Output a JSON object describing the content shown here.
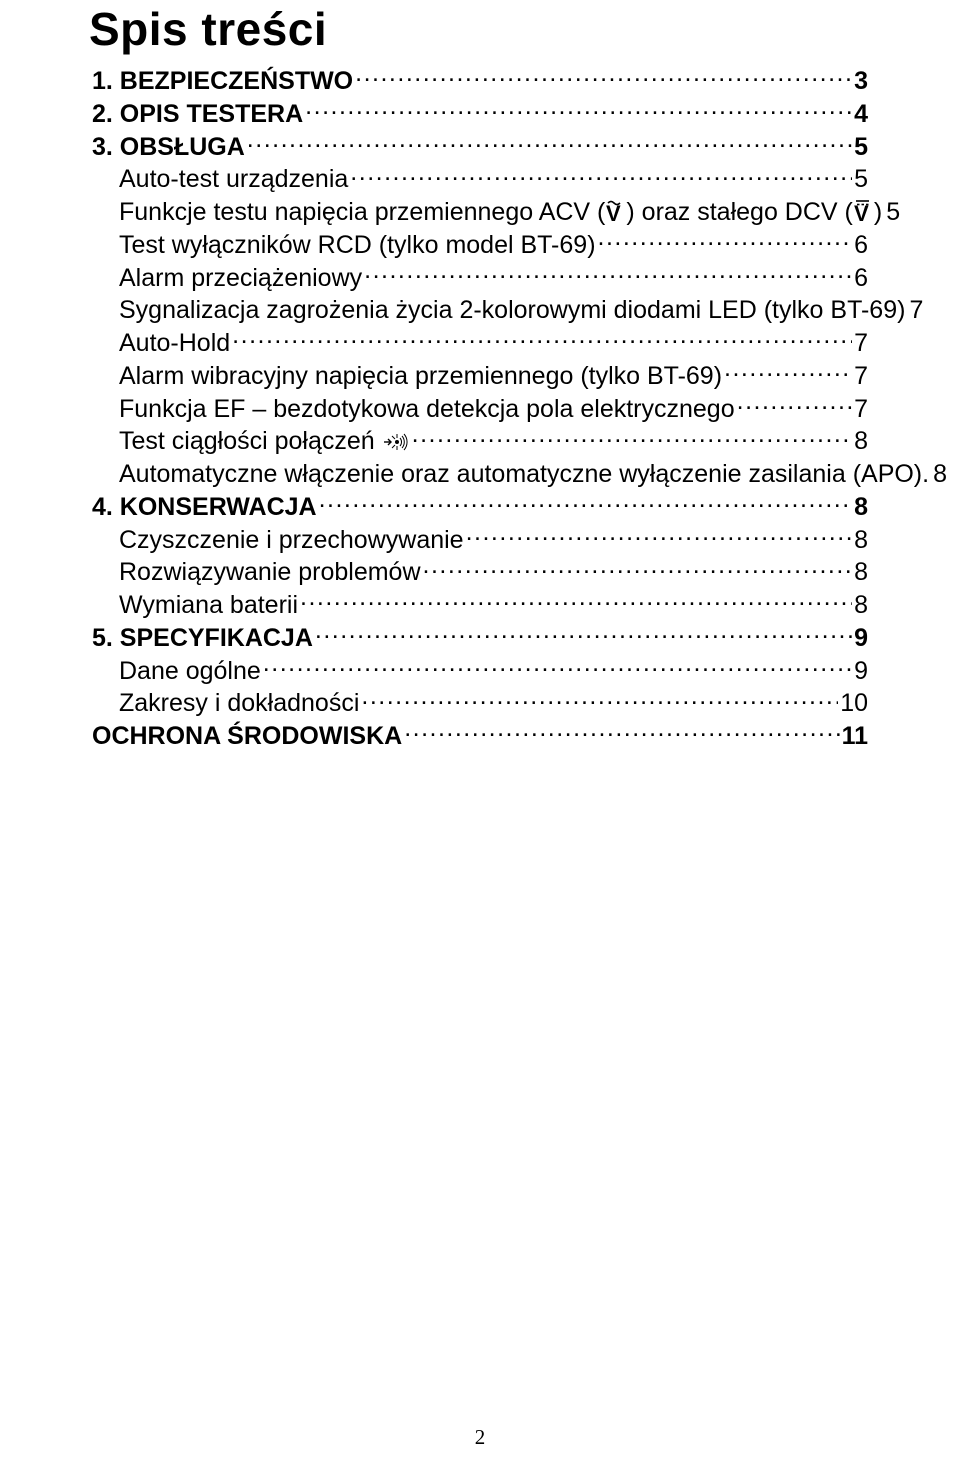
{
  "title": "Spis treści",
  "page_number": "2",
  "icons": {
    "v_tilde": "v-tilde-icon",
    "v_dblbar": "v-doublebar-icon",
    "sound": "sound-icon"
  },
  "toc": [
    {
      "label": "1. BEZPIECZEŃSTWO",
      "page": "3",
      "bold": true,
      "indent": false
    },
    {
      "label": "2. OPIS TESTERA",
      "page": "4",
      "bold": true,
      "indent": false
    },
    {
      "label": "3. OBSŁUGA",
      "page": "5",
      "bold": true,
      "indent": false
    },
    {
      "label_parts": [
        "Auto-test urządzenia"
      ],
      "page": "5",
      "bold": false,
      "indent": true
    },
    {
      "label_parts": [
        "Funkcje testu napięcia przemiennego ACV (",
        {
          "icon": "v_tilde"
        },
        ") oraz stałego DCV (",
        {
          "icon": "v_dblbar"
        },
        ")"
      ],
      "page": "5",
      "bold": false,
      "indent": true
    },
    {
      "label_parts": [
        "Test wyłączników RCD (tylko model BT-69)"
      ],
      "page": "6",
      "bold": false,
      "indent": true
    },
    {
      "label_parts": [
        "Alarm przeciążeniowy"
      ],
      "page": "6",
      "bold": false,
      "indent": true
    },
    {
      "label_parts": [
        "Sygnalizacja zagrożenia życia 2-kolorowymi diodami LED (tylko BT-69)"
      ],
      "page": "7",
      "bold": false,
      "indent": true
    },
    {
      "label_parts": [
        "Auto-Hold"
      ],
      "page": "7",
      "bold": false,
      "indent": true
    },
    {
      "label_parts": [
        "Alarm wibracyjny napięcia przemiennego (tylko BT-69)"
      ],
      "page": "7",
      "bold": false,
      "indent": true
    },
    {
      "label_parts": [
        "Funkcja EF – bezdotykowa detekcja pola elektrycznego"
      ],
      "page": "7",
      "bold": false,
      "indent": true
    },
    {
      "label_parts": [
        "Test ciągłości połączeń ",
        {
          "icon": "sound"
        }
      ],
      "page": "8",
      "bold": false,
      "indent": true
    },
    {
      "label_parts": [
        "Automatyczne włączenie oraz automatyczne wyłączenie zasilania (APO). "
      ],
      "page": "8",
      "bold": false,
      "indent": true
    },
    {
      "label": "4. KONSERWACJA",
      "page": "8",
      "bold": true,
      "indent": false
    },
    {
      "label_parts": [
        "Czyszczenie i przechowywanie"
      ],
      "page": "8",
      "bold": false,
      "indent": true
    },
    {
      "label_parts": [
        "Rozwiązywanie problemów"
      ],
      "page": "8",
      "bold": false,
      "indent": true
    },
    {
      "label_parts": [
        "Wymiana baterii"
      ],
      "page": "8",
      "bold": false,
      "indent": true
    },
    {
      "label": "5. SPECYFIKACJA",
      "page": "9",
      "bold": true,
      "indent": false
    },
    {
      "label_parts": [
        "Dane ogólne"
      ],
      "page": "9",
      "bold": false,
      "indent": true
    },
    {
      "label_parts": [
        "Zakresy i dokładności"
      ],
      "page": "10",
      "bold": false,
      "indent": true
    },
    {
      "label": "OCHRONA ŚRODOWISKA",
      "page": "11",
      "bold": true,
      "indent": false
    }
  ]
}
